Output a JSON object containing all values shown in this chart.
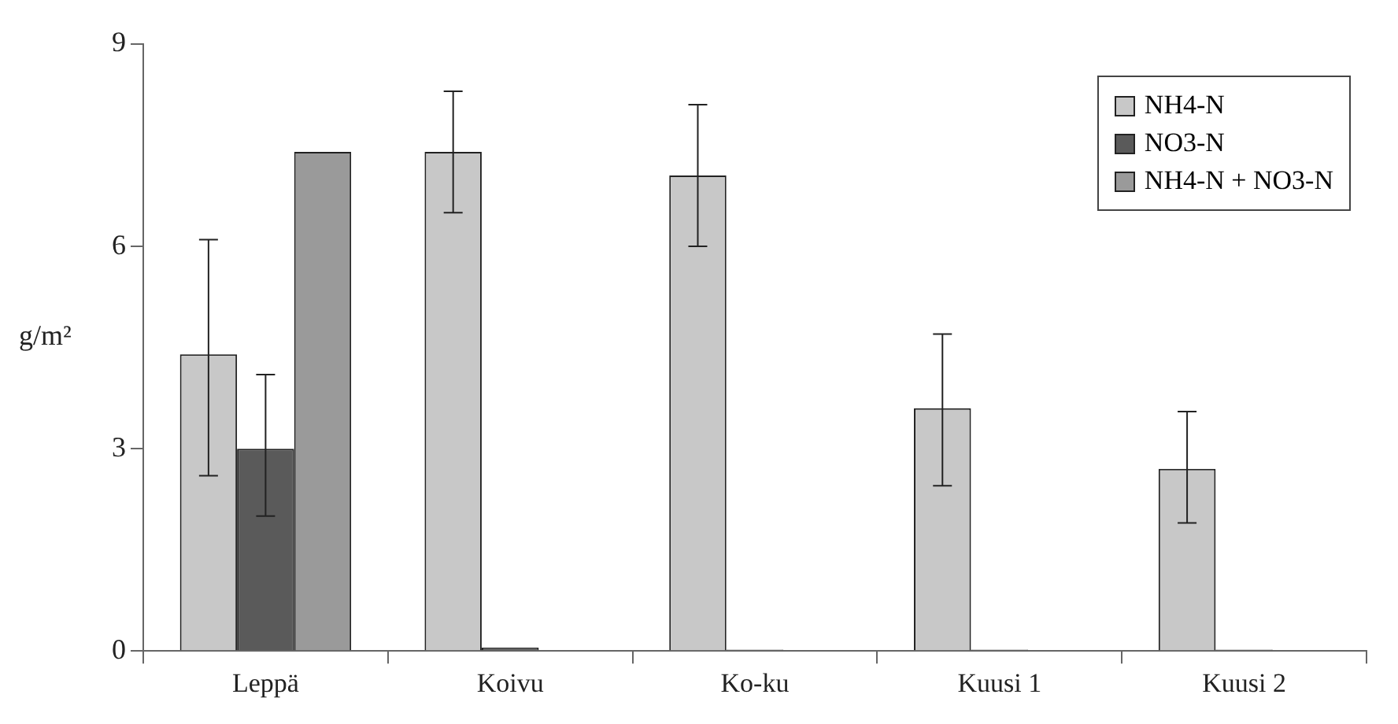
{
  "chart_data": {
    "type": "bar",
    "ylabel": "g/m²",
    "categories": [
      "Leppä",
      "Koivu",
      "Ko-ku",
      "Kuusi 1",
      "Kuusi 2"
    ],
    "series": [
      {
        "name": "NH4-N",
        "color": "#c8c8c8",
        "values": [
          4.4,
          7.4,
          7.05,
          3.6,
          2.7
        ],
        "errors": [
          [
            2.6,
            6.1
          ],
          [
            6.5,
            8.3
          ],
          [
            6.0,
            8.1
          ],
          [
            2.45,
            4.7
          ],
          [
            1.9,
            3.55
          ]
        ]
      },
      {
        "name": "NO3-N",
        "color": "#5a5a5a",
        "values": [
          3.0,
          0.05,
          0.02,
          0.02,
          0.02
        ],
        "errors": [
          [
            2.0,
            4.1
          ],
          null,
          null,
          null,
          null
        ]
      },
      {
        "name": "NH4-N + NO3-N",
        "color": "#9a9a9a",
        "values": [
          7.4,
          null,
          null,
          null,
          null
        ]
      }
    ],
    "ylim": [
      0,
      9
    ],
    "yticks": [
      0,
      3,
      6,
      9
    ],
    "grid": false,
    "legend": "top right"
  }
}
